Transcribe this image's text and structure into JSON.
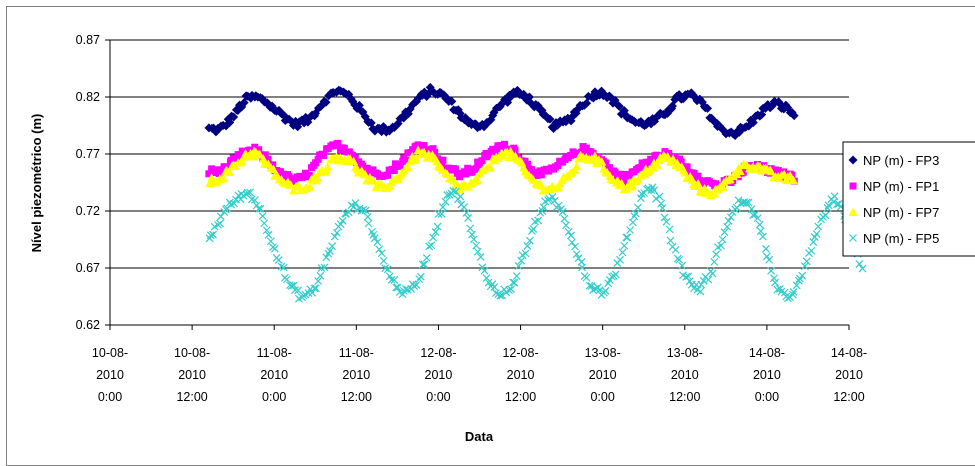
{
  "chart_data": {
    "type": "scatter",
    "title": "",
    "xlabel": "Data",
    "ylabel": "Nível piezométrico (m)",
    "ylim": [
      0.62,
      0.87
    ],
    "y_ticks": [
      0.62,
      0.67,
      0.72,
      0.77,
      0.82,
      0.87
    ],
    "x_range_hours": [
      0,
      108
    ],
    "x_ticks": [
      {
        "lines": [
          "10-08-",
          "2010",
          "0:00"
        ]
      },
      {
        "lines": [
          "10-08-",
          "2010",
          "12:00"
        ]
      },
      {
        "lines": [
          "11-08-",
          "2010",
          "0:00"
        ]
      },
      {
        "lines": [
          "11-08-",
          "2010",
          "12:00"
        ]
      },
      {
        "lines": [
          "12-08-",
          "2010",
          "0:00"
        ]
      },
      {
        "lines": [
          "12-08-",
          "2010",
          "12:00"
        ]
      },
      {
        "lines": [
          "13-08-",
          "2010",
          "0:00"
        ]
      },
      {
        "lines": [
          "13-08-",
          "2010",
          "12:00"
        ]
      },
      {
        "lines": [
          "14-08-",
          "2010",
          "0:00"
        ]
      },
      {
        "lines": [
          "14-08-",
          "2010",
          "12:00"
        ]
      }
    ],
    "grid": "horizontal",
    "legend_position": "right",
    "series": [
      {
        "name": "NP (m) - FP3",
        "color": "#000080",
        "marker": "diamond",
        "keyframes": [
          [
            14.5,
            0.792
          ],
          [
            16,
            0.791
          ],
          [
            18,
            0.803
          ],
          [
            20,
            0.819
          ],
          [
            21.5,
            0.82
          ],
          [
            23,
            0.815
          ],
          [
            25,
            0.805
          ],
          [
            27,
            0.796
          ],
          [
            29,
            0.8
          ],
          [
            31,
            0.815
          ],
          [
            33,
            0.826
          ],
          [
            35,
            0.821
          ],
          [
            37,
            0.805
          ],
          [
            39,
            0.791
          ],
          [
            41,
            0.792
          ],
          [
            43,
            0.803
          ],
          [
            45,
            0.818
          ],
          [
            47,
            0.826
          ],
          [
            49,
            0.82
          ],
          [
            51,
            0.806
          ],
          [
            53,
            0.794
          ],
          [
            55,
            0.797
          ],
          [
            57,
            0.812
          ],
          [
            59,
            0.824
          ],
          [
            61,
            0.82
          ],
          [
            63,
            0.806
          ],
          [
            65,
            0.794
          ],
          [
            67,
            0.8
          ],
          [
            69,
            0.813
          ],
          [
            71,
            0.824
          ],
          [
            73,
            0.822
          ],
          [
            75,
            0.806
          ],
          [
            77,
            0.797
          ],
          [
            79,
            0.797
          ],
          [
            81,
            0.805
          ],
          [
            83,
            0.819
          ],
          [
            85,
            0.822
          ],
          [
            87,
            0.811
          ],
          [
            89,
            0.793
          ],
          [
            91,
            0.788
          ],
          [
            93,
            0.793
          ],
          [
            95,
            0.806
          ],
          [
            97,
            0.815
          ],
          [
            99,
            0.81
          ],
          [
            100,
            0.804
          ]
        ]
      },
      {
        "name": "NP (m) - FP1",
        "color": "#ff00ff",
        "marker": "square",
        "keyframes": [
          [
            14.5,
            0.754
          ],
          [
            17,
            0.757
          ],
          [
            19,
            0.769
          ],
          [
            21,
            0.774
          ],
          [
            23,
            0.765
          ],
          [
            25,
            0.752
          ],
          [
            27,
            0.746
          ],
          [
            29,
            0.752
          ],
          [
            31,
            0.769
          ],
          [
            33,
            0.778
          ],
          [
            35,
            0.773
          ],
          [
            37,
            0.759
          ],
          [
            39,
            0.752
          ],
          [
            41,
            0.755
          ],
          [
            43,
            0.765
          ],
          [
            45,
            0.778
          ],
          [
            47,
            0.774
          ],
          [
            49,
            0.76
          ],
          [
            51,
            0.752
          ],
          [
            53,
            0.756
          ],
          [
            55,
            0.768
          ],
          [
            57,
            0.777
          ],
          [
            59,
            0.774
          ],
          [
            61,
            0.76
          ],
          [
            63,
            0.752
          ],
          [
            65,
            0.757
          ],
          [
            67,
            0.767
          ],
          [
            69,
            0.774
          ],
          [
            71,
            0.77
          ],
          [
            73,
            0.757
          ],
          [
            75,
            0.748
          ],
          [
            77,
            0.756
          ],
          [
            79,
            0.765
          ],
          [
            81,
            0.77
          ],
          [
            83,
            0.764
          ],
          [
            85,
            0.755
          ],
          [
            87,
            0.746
          ],
          [
            89,
            0.742
          ],
          [
            91,
            0.747
          ],
          [
            93,
            0.758
          ],
          [
            95,
            0.758
          ],
          [
            97,
            0.754
          ],
          [
            100,
            0.749
          ]
        ]
      },
      {
        "name": "NP (m) - FP7",
        "color": "#ffff00",
        "marker": "triangle",
        "keyframes": [
          [
            14.5,
            0.746
          ],
          [
            16,
            0.749
          ],
          [
            18,
            0.758
          ],
          [
            20,
            0.77
          ],
          [
            21.5,
            0.771
          ],
          [
            23,
            0.76
          ],
          [
            25,
            0.747
          ],
          [
            27,
            0.739
          ],
          [
            29,
            0.743
          ],
          [
            31,
            0.755
          ],
          [
            33,
            0.768
          ],
          [
            35,
            0.765
          ],
          [
            37,
            0.752
          ],
          [
            39,
            0.741
          ],
          [
            41,
            0.743
          ],
          [
            43,
            0.756
          ],
          [
            45,
            0.771
          ],
          [
            47,
            0.768
          ],
          [
            49,
            0.752
          ],
          [
            51,
            0.741
          ],
          [
            53,
            0.743
          ],
          [
            55,
            0.757
          ],
          [
            57,
            0.771
          ],
          [
            59,
            0.769
          ],
          [
            61,
            0.752
          ],
          [
            63,
            0.741
          ],
          [
            65,
            0.74
          ],
          [
            67,
            0.75
          ],
          [
            69,
            0.768
          ],
          [
            71,
            0.766
          ],
          [
            73,
            0.752
          ],
          [
            75,
            0.741
          ],
          [
            77,
            0.746
          ],
          [
            79,
            0.758
          ],
          [
            81,
            0.768
          ],
          [
            83,
            0.761
          ],
          [
            85,
            0.746
          ],
          [
            87,
            0.736
          ],
          [
            89,
            0.738
          ],
          [
            91,
            0.752
          ],
          [
            93,
            0.761
          ],
          [
            95,
            0.758
          ],
          [
            97,
            0.751
          ],
          [
            100,
            0.748
          ]
        ]
      },
      {
        "name": "NP (m) - FP5",
        "color": "#33cccc",
        "marker": "x",
        "keyframes": [
          [
            14.5,
            0.695
          ],
          [
            15.5,
            0.706
          ],
          [
            17,
            0.722
          ],
          [
            19,
            0.733
          ],
          [
            20.5,
            0.736
          ],
          [
            22,
            0.72
          ],
          [
            24,
            0.688
          ],
          [
            26,
            0.657
          ],
          [
            28,
            0.644
          ],
          [
            30,
            0.652
          ],
          [
            32,
            0.684
          ],
          [
            34,
            0.713
          ],
          [
            35.5,
            0.725
          ],
          [
            37,
            0.722
          ],
          [
            39,
            0.693
          ],
          [
            41,
            0.661
          ],
          [
            43,
            0.647
          ],
          [
            45,
            0.658
          ],
          [
            47,
            0.694
          ],
          [
            49,
            0.731
          ],
          [
            50,
            0.738
          ],
          [
            51.5,
            0.728
          ],
          [
            53,
            0.697
          ],
          [
            55,
            0.662
          ],
          [
            57,
            0.645
          ],
          [
            59,
            0.656
          ],
          [
            61,
            0.69
          ],
          [
            63,
            0.722
          ],
          [
            64.5,
            0.73
          ],
          [
            66,
            0.72
          ],
          [
            68,
            0.688
          ],
          [
            70,
            0.656
          ],
          [
            72,
            0.648
          ],
          [
            74,
            0.668
          ],
          [
            76,
            0.705
          ],
          [
            78,
            0.738
          ],
          [
            79,
            0.741
          ],
          [
            80.5,
            0.729
          ],
          [
            82,
            0.695
          ],
          [
            84,
            0.663
          ],
          [
            86,
            0.65
          ],
          [
            88,
            0.668
          ],
          [
            90,
            0.707
          ],
          [
            92,
            0.728
          ],
          [
            93,
            0.729
          ],
          [
            94.5,
            0.714
          ],
          [
            96,
            0.685
          ],
          [
            97.5,
            0.651
          ],
          [
            99,
            0.643
          ],
          [
            101,
            0.66
          ],
          [
            103,
            0.697
          ],
          [
            105,
            0.726
          ],
          [
            106,
            0.73
          ],
          [
            107.5,
            0.715
          ],
          [
            109,
            0.687
          ],
          [
            110,
            0.668
          ]
        ]
      }
    ]
  }
}
